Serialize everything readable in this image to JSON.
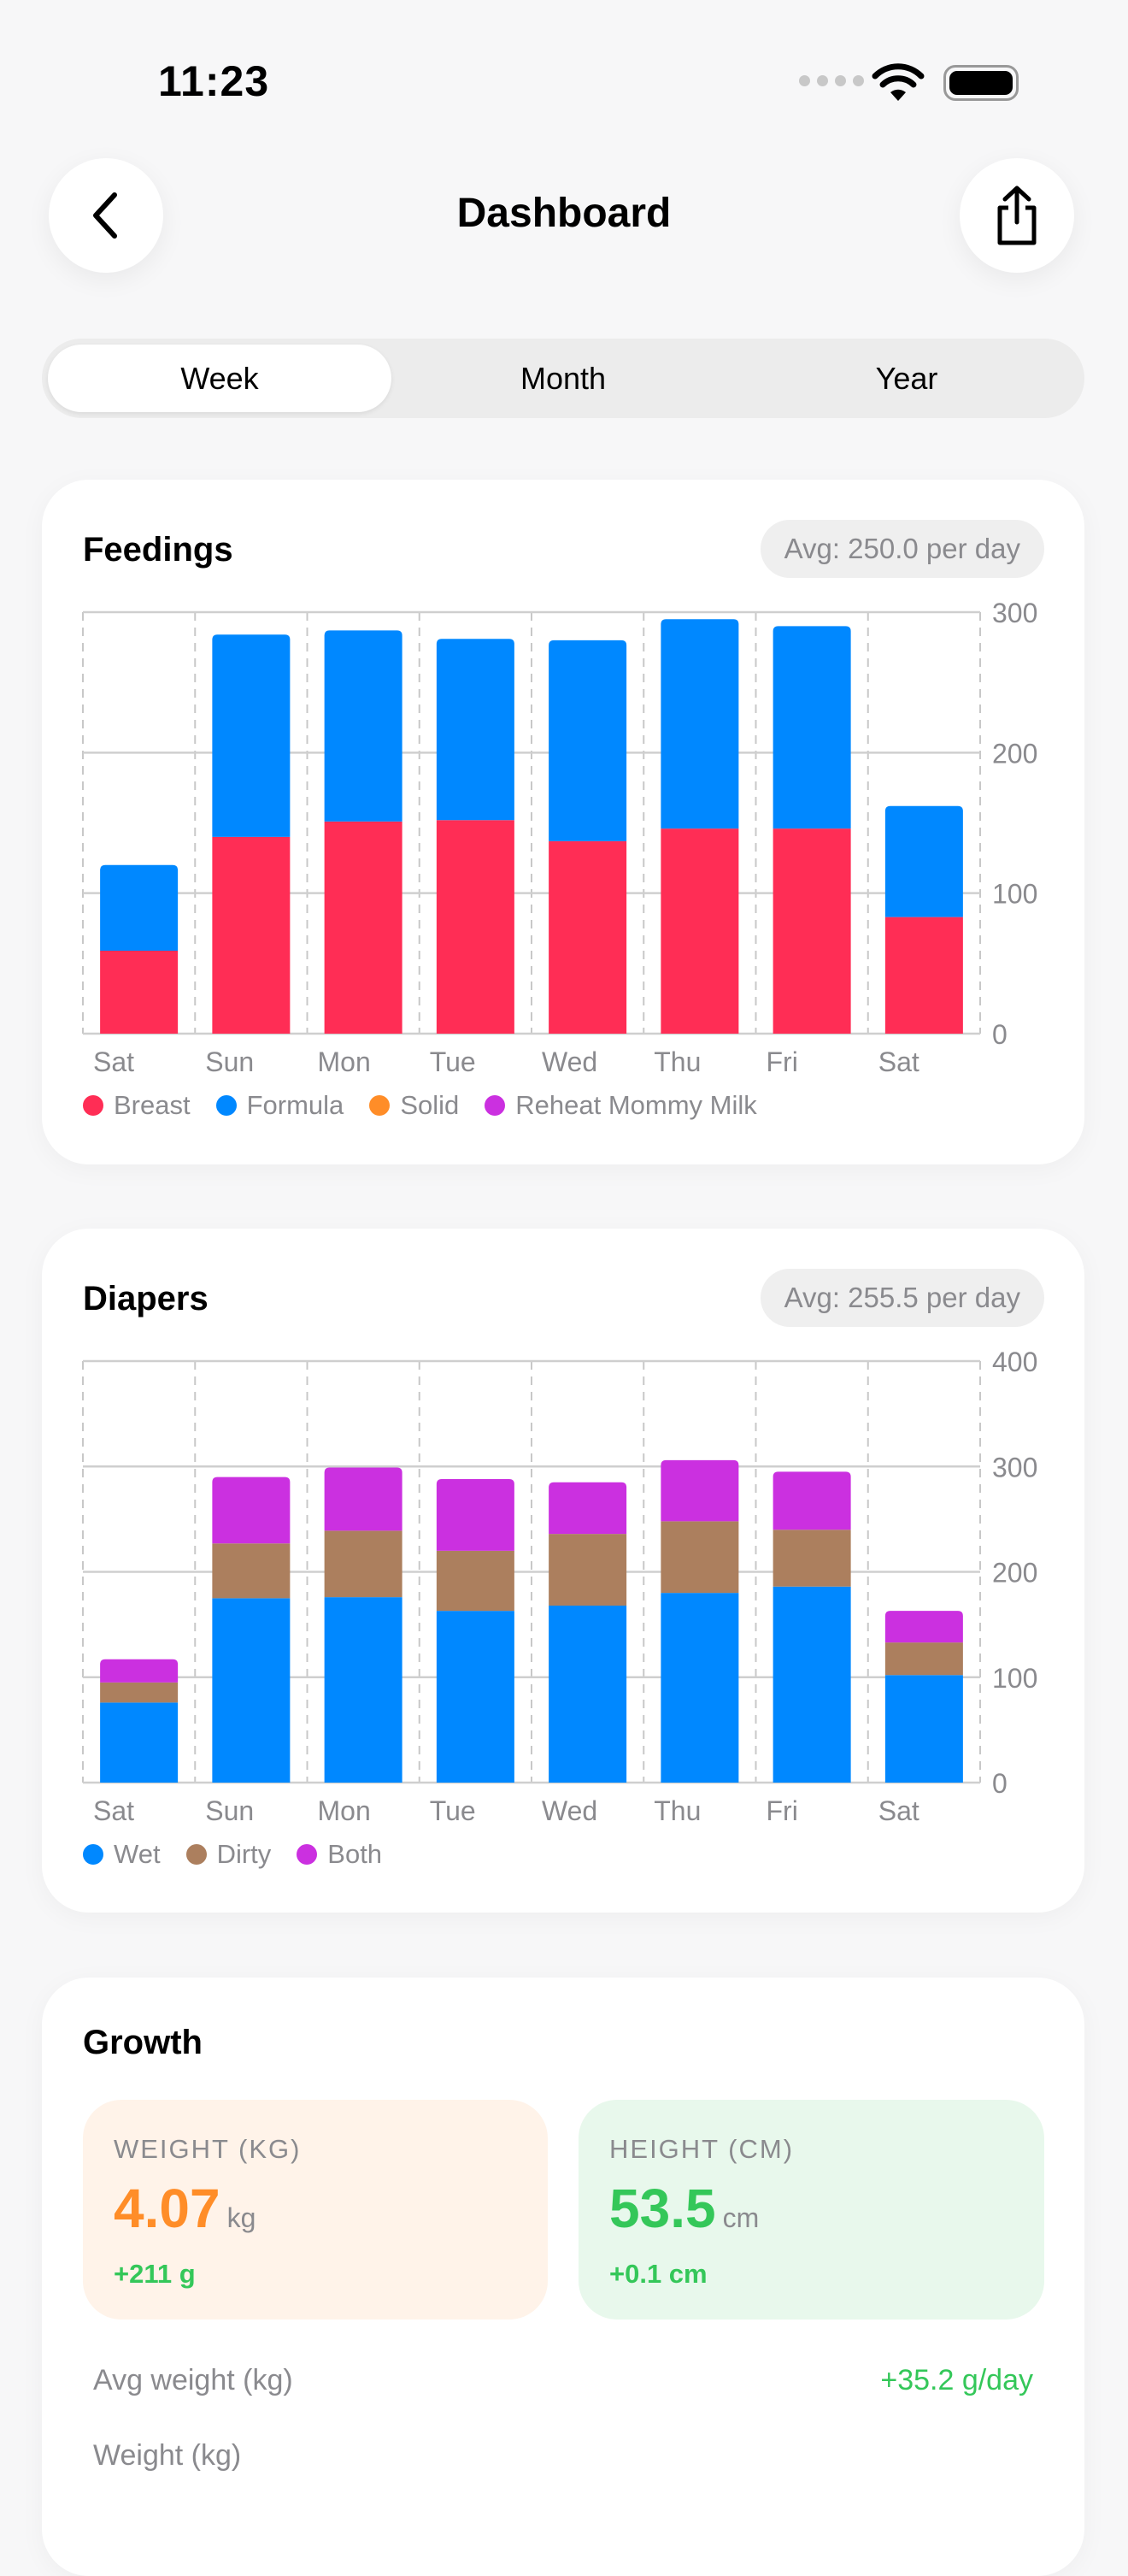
{
  "status": {
    "time": "11:23"
  },
  "header": {
    "title": "Dashboard",
    "back_icon": "chevron-left-icon",
    "share_icon": "share-icon"
  },
  "segments": [
    "Week",
    "Month",
    "Year"
  ],
  "selected_segment": "Week",
  "colors": {
    "breast": "#ff2d55",
    "formula": "#0088ff",
    "solid": "#ff8d28",
    "reheat": "#cb30e0",
    "wet": "#0088ff",
    "dirty": "#ac7f5e",
    "both": "#cb30e0",
    "weight": "#ff8d28",
    "height": "#34c759"
  },
  "feedings": {
    "title": "Feedings",
    "avg": "Avg: 250.0 per day",
    "legend": [
      "Breast",
      "Formula",
      "Solid",
      "Reheat Mommy Milk"
    ]
  },
  "diapers": {
    "title": "Diapers",
    "avg": "Avg: 255.5 per day",
    "legend": [
      "Wet",
      "Dirty",
      "Both"
    ]
  },
  "chart_data": [
    {
      "type": "bar",
      "stacked": true,
      "categories": [
        "Sat",
        "Sun",
        "Mon",
        "Tue",
        "Wed",
        "Thu",
        "Fri",
        "Sat"
      ],
      "ylim": [
        0,
        300
      ],
      "yticks": [
        0,
        100,
        200,
        300
      ],
      "grid": true,
      "legend_placement": "bottom-left",
      "series": [
        {
          "name": "Breast",
          "values": [
            59,
            140,
            151,
            152,
            137,
            146,
            146,
            83
          ]
        },
        {
          "name": "Formula",
          "values": [
            61,
            144,
            136,
            129,
            143,
            149,
            144,
            79
          ]
        },
        {
          "name": "Solid",
          "values": [
            0,
            0,
            0,
            0,
            0,
            0,
            0,
            0
          ]
        },
        {
          "name": "Reheat Mommy Milk",
          "values": [
            0,
            0,
            0,
            0,
            0,
            0,
            0,
            0
          ]
        }
      ]
    },
    {
      "type": "bar",
      "stacked": true,
      "categories": [
        "Sat",
        "Sun",
        "Mon",
        "Tue",
        "Wed",
        "Thu",
        "Fri",
        "Sat"
      ],
      "ylim": [
        0,
        400
      ],
      "yticks": [
        0,
        100,
        200,
        300,
        400
      ],
      "grid": true,
      "legend_placement": "bottom-left",
      "series": [
        {
          "name": "Wet",
          "values": [
            76,
            175,
            176,
            163,
            168,
            180,
            186,
            102
          ]
        },
        {
          "name": "Dirty",
          "values": [
            19,
            52,
            63,
            57,
            68,
            68,
            54,
            31
          ]
        },
        {
          "name": "Both",
          "values": [
            22,
            63,
            60,
            68,
            49,
            58,
            55,
            30
          ]
        }
      ]
    }
  ],
  "growth": {
    "title": "Growth",
    "weight": {
      "label": "WEIGHT (KG)",
      "value": "4.07",
      "unit": "kg",
      "delta": "+211 g"
    },
    "height": {
      "label": "HEIGHT (CM)",
      "value": "53.5",
      "unit": "cm",
      "delta": "+0.1 cm"
    },
    "avg_weight": {
      "label": "Avg weight (kg)",
      "value": "+35.2 g/day"
    },
    "next_label": "Weight (kg)"
  }
}
